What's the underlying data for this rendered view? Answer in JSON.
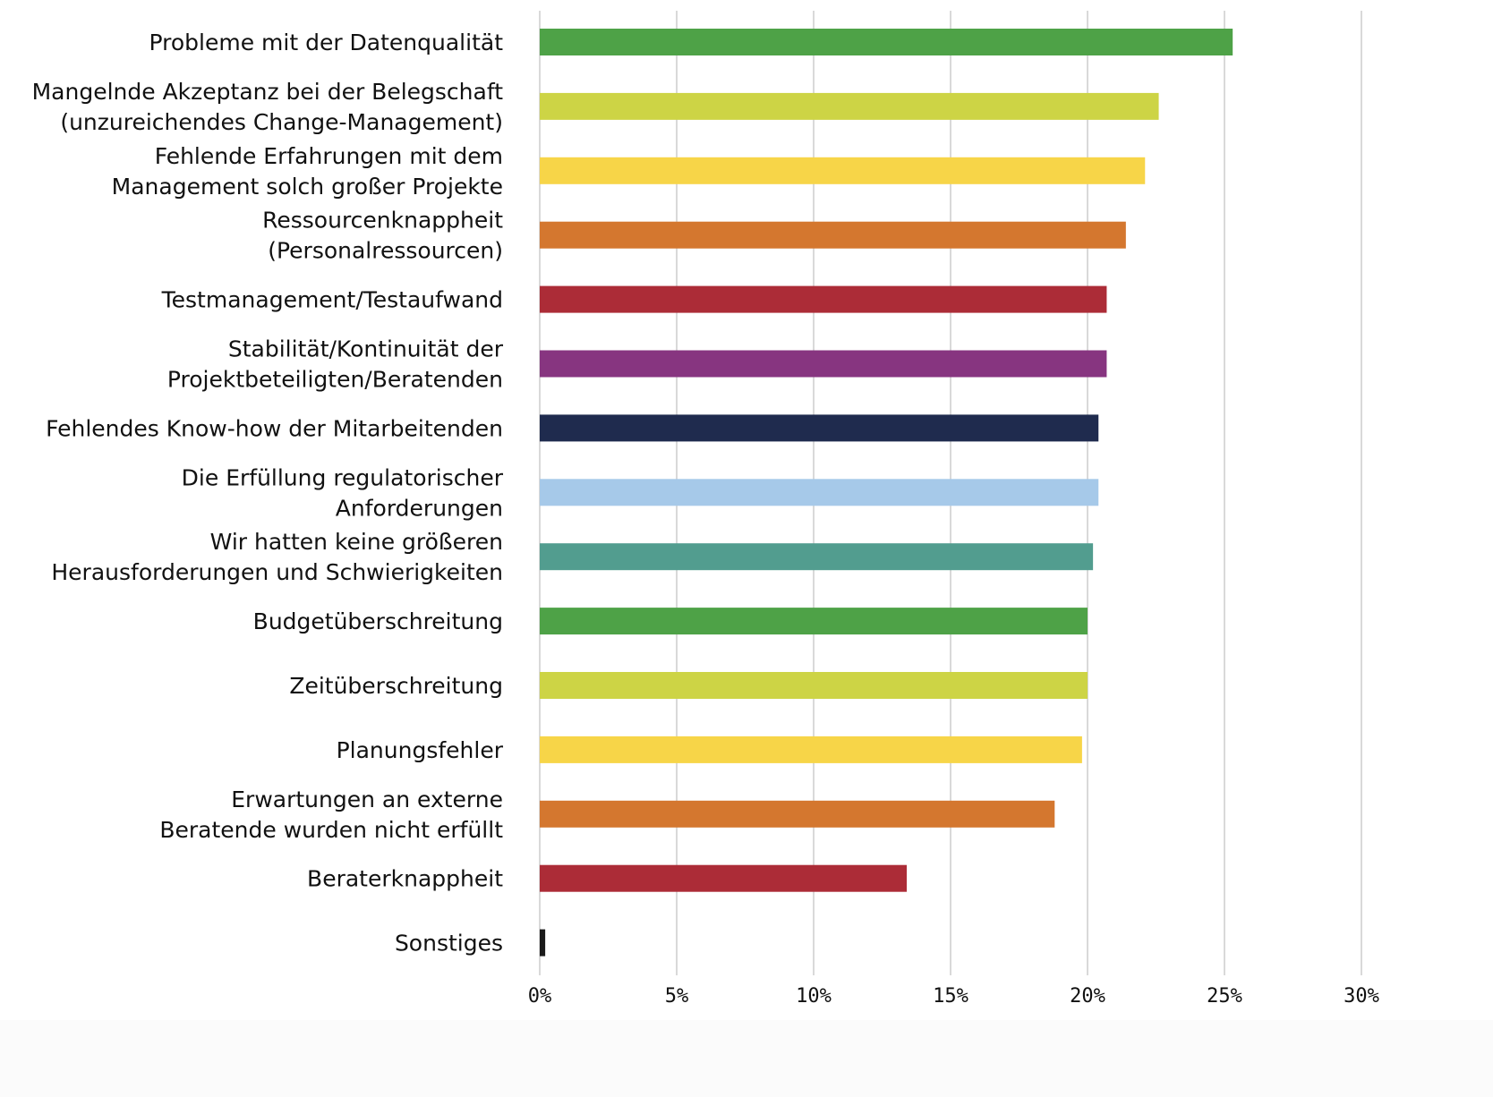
{
  "chart_data": {
    "type": "bar",
    "orientation": "horizontal",
    "title": "",
    "xlabel": "",
    "ylabel": "",
    "xlim": [
      0,
      30
    ],
    "x_ticks": [
      "0%",
      "5%",
      "10%",
      "15%",
      "20%",
      "25%",
      "30%"
    ],
    "x_tick_values": [
      0,
      5,
      10,
      15,
      20,
      25,
      30
    ],
    "grid": "vertical",
    "legend": "none",
    "value_unit": "%",
    "categories": [
      [
        "Probleme mit der Datenqualität"
      ],
      [
        "Mangelnde Akzeptanz bei der Belegschaft",
        "(unzureichendes Change-Management)"
      ],
      [
        "Fehlende Erfahrungen mit dem",
        "Management solch großer Projekte"
      ],
      [
        "Ressourcenknappheit",
        "(Personalressourcen)"
      ],
      [
        "Testmanagement/Testaufwand"
      ],
      [
        "Stabilität/Kontinuität der",
        "Projektbeteiligten/Beratenden"
      ],
      [
        "Fehlendes Know-how der Mitarbeitenden"
      ],
      [
        "Die Erfüllung regulatorischer",
        "Anforderungen"
      ],
      [
        "Wir hatten keine größeren",
        "Herausforderungen und Schwierigkeiten"
      ],
      [
        "Budgetüberschreitung"
      ],
      [
        "Zeitüberschreitung"
      ],
      [
        "Planungsfehler"
      ],
      [
        "Erwartungen an externe",
        "Beratende wurden nicht erfüllt"
      ],
      [
        "Beraterknappheit"
      ],
      [
        "Sonstiges"
      ]
    ],
    "values": [
      25.3,
      22.6,
      22.1,
      21.4,
      20.7,
      20.7,
      20.4,
      20.4,
      20.2,
      20.0,
      20.0,
      19.8,
      18.8,
      13.4,
      0.2
    ],
    "colors": [
      "#4ea247",
      "#cdd445",
      "#f7d548",
      "#d4772f",
      "#ac2c37",
      "#873580",
      "#1f2b4e",
      "#a6c9e9",
      "#529d8f",
      "#4ea247",
      "#cdd445",
      "#f7d548",
      "#d4772f",
      "#ac2c37",
      "#1a1a1a"
    ]
  }
}
